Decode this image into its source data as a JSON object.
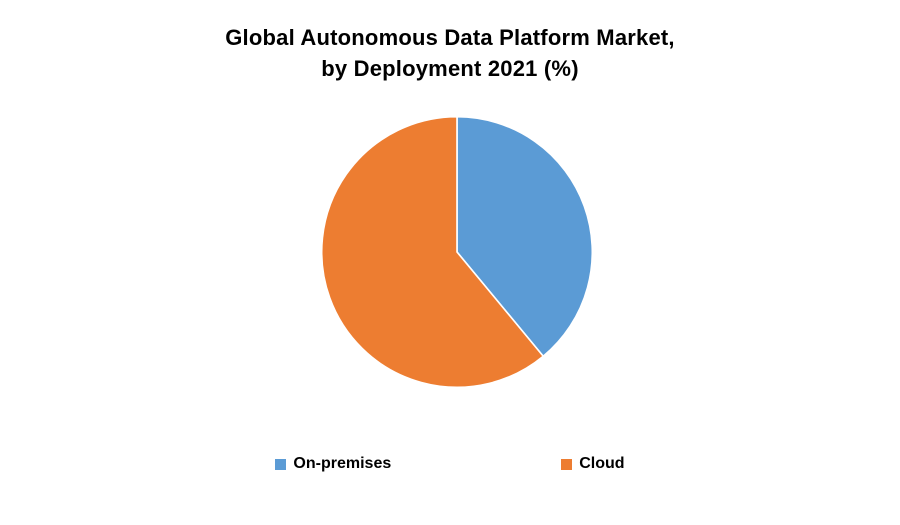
{
  "title": {
    "line1": "Global Autonomous Data Platform Market,",
    "line2": "by Deployment  2021 (%)"
  },
  "chart_data": {
    "type": "pie",
    "title": "Global Autonomous Data Platform Market, by Deployment 2021 (%)",
    "categories": [
      "On-premises",
      "Cloud"
    ],
    "values": [
      39,
      61
    ],
    "colors": [
      "#5B9BD5",
      "#ED7D31"
    ],
    "start_angle_deg": 0,
    "direction": "clockwise",
    "legend_position": "bottom",
    "data_labels": "none"
  },
  "legend": {
    "items": [
      {
        "label": "On-premises",
        "color": "#5B9BD5"
      },
      {
        "label": "Cloud",
        "color": "#ED7D31"
      }
    ]
  }
}
